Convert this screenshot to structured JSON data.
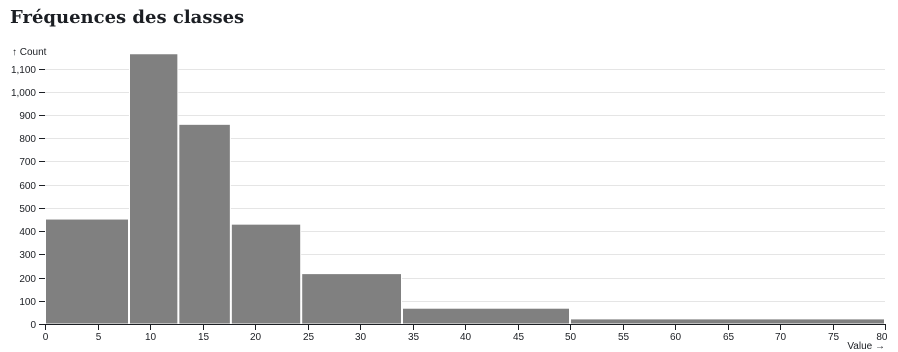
{
  "title": "Fréquences des classes",
  "chart_data": {
    "type": "bar",
    "subtype": "histogram",
    "title": "Fréquences des classes",
    "ylabel": "↑ Count",
    "xlabel": "Value →",
    "xlim": [
      0,
      80
    ],
    "ylim": [
      0,
      1150
    ],
    "xticks": [
      0,
      5,
      10,
      15,
      20,
      25,
      30,
      35,
      40,
      45,
      50,
      55,
      60,
      65,
      70,
      75,
      80
    ],
    "yticks": [
      0,
      100,
      200,
      300,
      400,
      500,
      600,
      700,
      800,
      900,
      1000,
      1100
    ],
    "ytick_labels": [
      "0",
      "100",
      "200",
      "300",
      "400",
      "500",
      "600",
      "700",
      "800",
      "900",
      "1,000",
      "1,100"
    ],
    "grid": true,
    "bins": [
      {
        "x0": 0,
        "x1": 8,
        "value": 452
      },
      {
        "x0": 8,
        "x1": 12.7,
        "value": 1164
      },
      {
        "x0": 12.7,
        "x1": 17.7,
        "value": 860
      },
      {
        "x0": 17.7,
        "x1": 24.4,
        "value": 430
      },
      {
        "x0": 24.4,
        "x1": 34,
        "value": 217
      },
      {
        "x0": 34,
        "x1": 50,
        "value": 68
      },
      {
        "x0": 50,
        "x1": 80,
        "value": 22
      }
    ],
    "colors": {
      "bar": "#808080",
      "bar_stroke": "#ffffff",
      "text": "#1b1e23"
    }
  }
}
